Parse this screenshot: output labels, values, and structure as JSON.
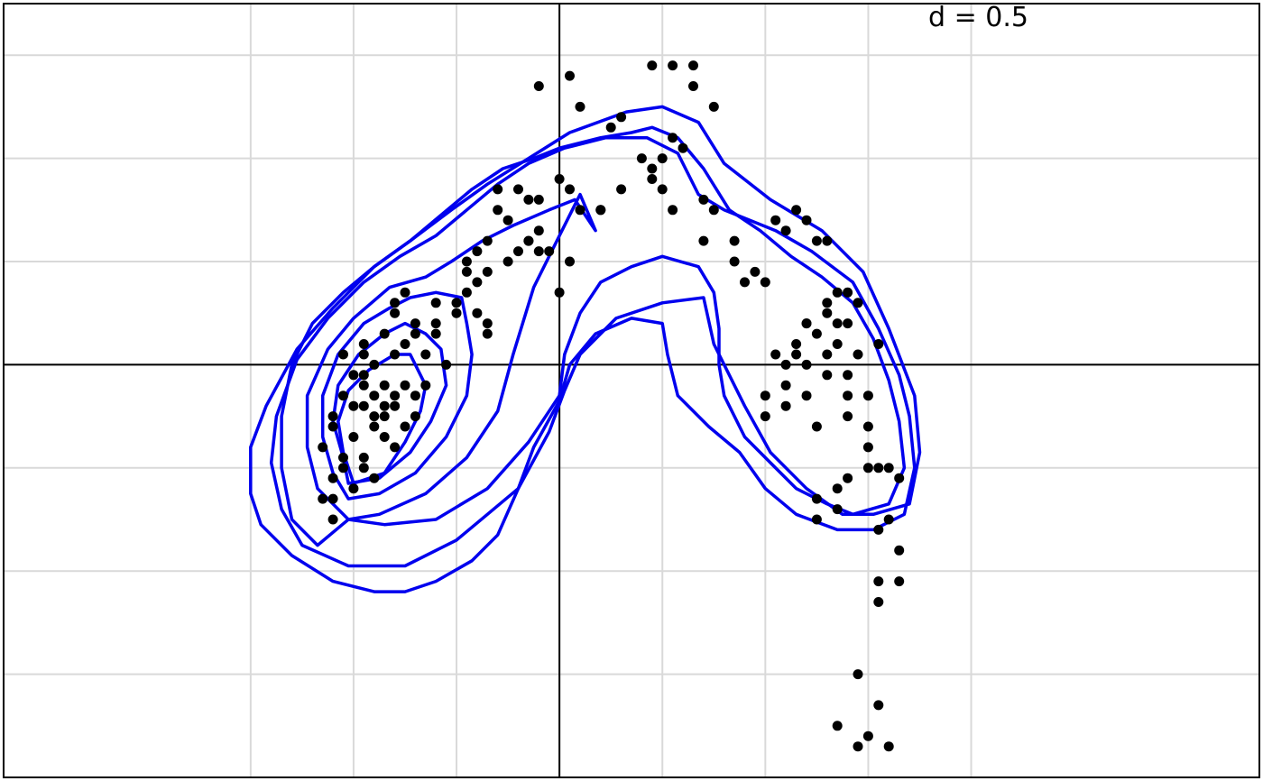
{
  "chart_data": {
    "type": "scatter",
    "title": "",
    "label": "d = 0.5",
    "xlabel": "",
    "ylabel": "",
    "xlim": [
      -5.4,
      6.8
    ],
    "ylim": [
      -4.0,
      3.5
    ],
    "x_grid": [
      -3,
      -2,
      -1,
      0,
      1,
      2,
      3,
      4
    ],
    "y_grid": [
      -3,
      -2,
      -1,
      0,
      1,
      2,
      3
    ],
    "grid": true,
    "reference_axes": {
      "x": 0,
      "y": 0
    },
    "colors": {
      "contour": "#0000ee",
      "points": "#000000",
      "grid": "#d9d9d9"
    },
    "points": [
      [
        -2.0,
        -0.1
      ],
      [
        -1.9,
        -0.2
      ],
      [
        -1.8,
        -0.3
      ],
      [
        -1.9,
        -0.4
      ],
      [
        -2.1,
        -0.3
      ],
      [
        -2.2,
        -0.5
      ],
      [
        -1.7,
        -0.5
      ],
      [
        -1.6,
        -0.4
      ],
      [
        -1.7,
        -0.2
      ],
      [
        -1.8,
        0.0
      ],
      [
        -1.6,
        0.1
      ],
      [
        -1.5,
        -0.2
      ],
      [
        -1.5,
        -0.6
      ],
      [
        -1.7,
        -0.7
      ],
      [
        -2.0,
        -0.7
      ],
      [
        -2.1,
        -0.9
      ],
      [
        -1.9,
        -0.9
      ],
      [
        -1.6,
        -0.8
      ],
      [
        -1.4,
        -0.5
      ],
      [
        -1.3,
        -0.2
      ],
      [
        -1.3,
        0.1
      ],
      [
        -1.2,
        0.3
      ],
      [
        -1.4,
        0.4
      ],
      [
        -1.6,
        0.5
      ],
      [
        -1.2,
        0.4
      ],
      [
        -1.0,
        0.5
      ],
      [
        -0.8,
        0.5
      ],
      [
        -0.7,
        0.4
      ],
      [
        -0.7,
        0.3
      ],
      [
        -1.0,
        0.6
      ],
      [
        -1.2,
        0.6
      ],
      [
        -1.9,
        0.2
      ],
      [
        -2.1,
        0.1
      ],
      [
        -2.3,
        -0.8
      ],
      [
        -2.2,
        -0.6
      ],
      [
        -2.2,
        -1.1
      ],
      [
        -2.3,
        -1.3
      ],
      [
        -2.2,
        -1.5
      ],
      [
        -2.0,
        -1.2
      ],
      [
        -1.8,
        -1.1
      ],
      [
        -1.6,
        0.6
      ],
      [
        -1.5,
        0.7
      ],
      [
        -1.4,
        0.3
      ],
      [
        -1.1,
        0.0
      ],
      [
        -1.6,
        -0.3
      ],
      [
        -1.8,
        -0.6
      ],
      [
        -1.9,
        -0.1
      ],
      [
        -1.9,
        0.1
      ],
      [
        -1.5,
        0.2
      ],
      [
        -1.7,
        0.3
      ],
      [
        -0.8,
        1.1
      ],
      [
        -0.7,
        1.2
      ],
      [
        -0.5,
        1.0
      ],
      [
        -0.4,
        1.1
      ],
      [
        -0.3,
        1.2
      ],
      [
        -0.2,
        1.1
      ],
      [
        -0.1,
        1.1
      ],
      [
        0.1,
        1.0
      ],
      [
        -0.2,
        1.3
      ],
      [
        -0.3,
        1.2
      ],
      [
        0.0,
        0.7
      ],
      [
        -0.7,
        0.9
      ],
      [
        -0.8,
        0.8
      ],
      [
        -0.9,
        0.9
      ],
      [
        -0.9,
        0.7
      ],
      [
        -0.9,
        1.0
      ],
      [
        -0.6,
        1.5
      ],
      [
        -0.5,
        1.4
      ],
      [
        -0.6,
        1.7
      ],
      [
        -0.4,
        1.7
      ],
      [
        -0.3,
        1.6
      ],
      [
        -0.2,
        1.6
      ],
      [
        0.0,
        1.8
      ],
      [
        0.1,
        1.7
      ],
      [
        0.2,
        1.5
      ],
      [
        0.4,
        1.5
      ],
      [
        -0.2,
        2.7
      ],
      [
        0.1,
        2.8
      ],
      [
        0.2,
        2.5
      ],
      [
        0.6,
        2.4
      ],
      [
        1.1,
        2.2
      ],
      [
        1.2,
        2.1
      ],
      [
        1.5,
        2.5
      ],
      [
        1.3,
        2.7
      ],
      [
        0.8,
        2.0
      ],
      [
        0.9,
        1.9
      ],
      [
        0.6,
        1.7
      ],
      [
        0.4,
        1.5
      ],
      [
        0.9,
        1.8
      ],
      [
        1.0,
        2.0
      ],
      [
        0.9,
        2.9
      ],
      [
        1.1,
        2.9
      ],
      [
        1.3,
        2.9
      ],
      [
        0.5,
        2.3
      ],
      [
        1.0,
        1.7
      ],
      [
        1.1,
        1.5
      ],
      [
        1.4,
        1.6
      ],
      [
        1.5,
        1.5
      ],
      [
        1.4,
        1.2
      ],
      [
        1.7,
        1.2
      ],
      [
        1.7,
        1.0
      ],
      [
        1.8,
        0.8
      ],
      [
        1.9,
        0.9
      ],
      [
        2.0,
        0.8
      ],
      [
        2.1,
        1.4
      ],
      [
        2.2,
        1.3
      ],
      [
        2.4,
        1.4
      ],
      [
        2.3,
        1.5
      ],
      [
        2.5,
        1.2
      ],
      [
        2.6,
        1.2
      ],
      [
        2.4,
        0.4
      ],
      [
        2.3,
        0.1
      ],
      [
        2.4,
        0.0
      ],
      [
        2.2,
        -0.2
      ],
      [
        2.0,
        -0.3
      ],
      [
        2.0,
        -0.5
      ],
      [
        2.4,
        -0.3
      ],
      [
        2.6,
        0.1
      ],
      [
        2.2,
        0.0
      ],
      [
        2.4,
        0.4
      ],
      [
        2.6,
        0.6
      ],
      [
        2.7,
        0.7
      ],
      [
        2.8,
        0.7
      ],
      [
        2.9,
        0.6
      ],
      [
        2.8,
        0.4
      ],
      [
        2.5,
        0.3
      ],
      [
        2.6,
        0.5
      ],
      [
        2.7,
        0.4
      ],
      [
        2.7,
        0.2
      ],
      [
        3.1,
        0.2
      ],
      [
        2.9,
        0.1
      ],
      [
        2.8,
        -0.1
      ],
      [
        2.8,
        -0.3
      ],
      [
        2.8,
        -0.5
      ],
      [
        3.0,
        -0.3
      ],
      [
        3.0,
        -0.6
      ],
      [
        3.0,
        -0.8
      ],
      [
        3.0,
        -1.0
      ],
      [
        3.1,
        -1.0
      ],
      [
        3.2,
        -1.0
      ],
      [
        2.8,
        -1.1
      ],
      [
        2.7,
        -1.2
      ],
      [
        2.5,
        -1.3
      ],
      [
        2.5,
        -1.5
      ],
      [
        2.7,
        -1.4
      ],
      [
        3.3,
        -1.1
      ],
      [
        3.2,
        -1.5
      ],
      [
        3.1,
        -1.6
      ],
      [
        3.3,
        -1.8
      ],
      [
        3.1,
        -2.1
      ],
      [
        3.1,
        -2.3
      ],
      [
        3.3,
        -2.1
      ],
      [
        2.9,
        -3.0
      ],
      [
        3.1,
        -3.3
      ],
      [
        2.7,
        -3.5
      ],
      [
        3.0,
        -3.6
      ],
      [
        2.9,
        -3.7
      ],
      [
        3.2,
        -3.7
      ],
      [
        2.2,
        -0.4
      ],
      [
        2.5,
        -0.6
      ],
      [
        2.1,
        0.1
      ],
      [
        2.3,
        0.2
      ],
      [
        2.6,
        -0.1
      ],
      [
        -1.4,
        -0.3
      ],
      [
        -1.8,
        -0.5
      ],
      [
        -2.0,
        -0.4
      ],
      [
        -2.1,
        -1.0
      ],
      [
        -2.2,
        -1.3
      ],
      [
        -1.9,
        -1.0
      ],
      [
        -1.7,
        -0.4
      ]
    ],
    "contours": [
      [
        [
          -2.0,
          -1.15
        ],
        [
          -1.7,
          -1.05
        ],
        [
          -1.5,
          -0.75
        ],
        [
          -1.35,
          -0.45
        ],
        [
          -1.3,
          -0.2
        ],
        [
          -1.45,
          0.1
        ],
        [
          -1.6,
          0.1
        ],
        [
          -1.85,
          -0.05
        ],
        [
          -2.05,
          -0.25
        ],
        [
          -2.15,
          -0.55
        ],
        [
          -2.1,
          -0.85
        ],
        [
          -2.0,
          -1.15
        ]
      ],
      [
        [
          -2.05,
          -1.15
        ],
        [
          -1.75,
          -1.1
        ],
        [
          -1.45,
          -0.85
        ],
        [
          -1.25,
          -0.55
        ],
        [
          -1.1,
          -0.2
        ],
        [
          -1.15,
          0.15
        ],
        [
          -1.3,
          0.3
        ],
        [
          -1.5,
          0.4
        ],
        [
          -1.7,
          0.3
        ],
        [
          -1.95,
          0.1
        ],
        [
          -2.15,
          -0.2
        ],
        [
          -2.2,
          -0.55
        ],
        [
          -2.1,
          -0.9
        ],
        [
          -2.05,
          -1.15
        ]
      ],
      [
        [
          -2.05,
          -1.3
        ],
        [
          -1.75,
          -1.25
        ],
        [
          -1.4,
          -1.05
        ],
        [
          -1.1,
          -0.7
        ],
        [
          -0.9,
          -0.3
        ],
        [
          -0.85,
          0.1
        ],
        [
          -0.9,
          0.4
        ],
        [
          -0.95,
          0.65
        ],
        [
          -1.2,
          0.7
        ],
        [
          -1.45,
          0.65
        ],
        [
          -1.65,
          0.55
        ],
        [
          -1.9,
          0.4
        ],
        [
          -2.15,
          0.1
        ],
        [
          -2.3,
          -0.3
        ],
        [
          -2.3,
          -0.7
        ],
        [
          -2.2,
          -1.05
        ],
        [
          -2.05,
          -1.3
        ]
      ],
      [
        [
          -2.05,
          -1.5
        ],
        [
          -1.75,
          -1.45
        ],
        [
          -1.3,
          -1.25
        ],
        [
          -0.9,
          -0.9
        ],
        [
          -0.6,
          -0.45
        ],
        [
          -0.45,
          0.1
        ],
        [
          -0.25,
          0.75
        ],
        [
          0.0,
          1.25
        ],
        [
          0.2,
          1.65
        ],
        [
          0.35,
          1.3
        ],
        [
          0.15,
          1.6
        ],
        [
          -0.1,
          1.5
        ],
        [
          -0.45,
          1.35
        ],
        [
          -0.75,
          1.2
        ],
        [
          -1.05,
          1.0
        ],
        [
          -1.3,
          0.85
        ],
        [
          -1.65,
          0.75
        ],
        [
          -2.0,
          0.45
        ],
        [
          -2.25,
          0.15
        ],
        [
          -2.45,
          -0.3
        ],
        [
          -2.45,
          -0.8
        ],
        [
          -2.35,
          -1.2
        ],
        [
          -2.05,
          -1.5
        ]
      ],
      [
        [
          -2.05,
          -1.5
        ],
        [
          -1.7,
          -1.55
        ],
        [
          -1.2,
          -1.5
        ],
        [
          -0.7,
          -1.2
        ],
        [
          -0.3,
          -0.75
        ],
        [
          0.0,
          -0.3
        ],
        [
          0.05,
          0.1
        ],
        [
          0.2,
          0.5
        ],
        [
          0.4,
          0.8
        ],
        [
          0.7,
          0.95
        ],
        [
          1.0,
          1.05
        ],
        [
          1.35,
          0.95
        ],
        [
          1.5,
          0.7
        ],
        [
          1.55,
          0.35
        ],
        [
          1.55,
          0.0
        ],
        [
          1.6,
          -0.3
        ],
        [
          1.8,
          -0.7
        ],
        [
          2.05,
          -0.95
        ],
        [
          2.3,
          -1.2
        ],
        [
          2.6,
          -1.35
        ],
        [
          2.85,
          -1.45
        ],
        [
          3.2,
          -1.35
        ],
        [
          3.35,
          -1.0
        ],
        [
          3.3,
          -0.55
        ],
        [
          3.2,
          -0.15
        ],
        [
          3.05,
          0.25
        ],
        [
          2.85,
          0.6
        ],
        [
          2.55,
          0.85
        ],
        [
          2.25,
          1.05
        ],
        [
          1.95,
          1.3
        ],
        [
          1.65,
          1.5
        ],
        [
          1.4,
          1.9
        ],
        [
          1.15,
          2.2
        ],
        [
          0.9,
          2.3
        ],
        [
          0.7,
          2.25
        ],
        [
          0.4,
          2.2
        ],
        [
          0.0,
          2.1
        ],
        [
          -0.25,
          2.0
        ],
        [
          -0.55,
          1.9
        ],
        [
          -0.85,
          1.7
        ],
        [
          -1.15,
          1.45
        ],
        [
          -1.45,
          1.2
        ],
        [
          -1.8,
          0.95
        ],
        [
          -2.1,
          0.7
        ],
        [
          -2.4,
          0.4
        ],
        [
          -2.6,
          0.0
        ],
        [
          -2.7,
          -0.5
        ],
        [
          -2.7,
          -1.0
        ],
        [
          -2.6,
          -1.5
        ],
        [
          -2.35,
          -1.75
        ],
        [
          -2.05,
          -1.5
        ]
      ],
      [
        [
          -2.05,
          -1.95
        ],
        [
          -1.5,
          -1.95
        ],
        [
          -1.0,
          -1.7
        ],
        [
          -0.7,
          -1.45
        ],
        [
          -0.4,
          -1.2
        ],
        [
          -0.25,
          -0.8
        ],
        [
          0.0,
          -0.35
        ],
        [
          0.1,
          0.0
        ],
        [
          0.35,
          0.3
        ],
        [
          0.7,
          0.45
        ],
        [
          1.0,
          0.4
        ],
        [
          1.05,
          0.1
        ],
        [
          1.15,
          -0.3
        ],
        [
          1.45,
          -0.6
        ],
        [
          1.75,
          -0.85
        ],
        [
          2.0,
          -1.2
        ],
        [
          2.3,
          -1.45
        ],
        [
          2.7,
          -1.6
        ],
        [
          3.05,
          -1.6
        ],
        [
          3.35,
          -1.45
        ],
        [
          3.45,
          -1.0
        ],
        [
          3.4,
          -0.5
        ],
        [
          3.3,
          -0.1
        ],
        [
          3.1,
          0.35
        ],
        [
          2.85,
          0.8
        ],
        [
          2.45,
          1.1
        ],
        [
          2.1,
          1.3
        ],
        [
          1.6,
          1.5
        ],
        [
          1.35,
          1.65
        ],
        [
          1.15,
          2.05
        ],
        [
          0.85,
          2.2
        ],
        [
          0.45,
          2.2
        ],
        [
          0.05,
          2.1
        ],
        [
          -0.3,
          1.95
        ],
        [
          -0.6,
          1.75
        ],
        [
          -0.9,
          1.5
        ],
        [
          -1.2,
          1.25
        ],
        [
          -1.55,
          1.05
        ],
        [
          -1.9,
          0.8
        ],
        [
          -2.25,
          0.45
        ],
        [
          -2.55,
          0.05
        ],
        [
          -2.75,
          -0.5
        ],
        [
          -2.8,
          -0.95
        ],
        [
          -2.7,
          -1.4
        ],
        [
          -2.5,
          -1.75
        ],
        [
          -2.05,
          -1.95
        ]
      ],
      [
        [
          -1.8,
          -2.2
        ],
        [
          -1.5,
          -2.2
        ],
        [
          -1.2,
          -2.1
        ],
        [
          -0.85,
          -1.9
        ],
        [
          -0.6,
          -1.65
        ],
        [
          -0.4,
          -1.2
        ],
        [
          -0.1,
          -0.65
        ],
        [
          0.05,
          -0.25
        ],
        [
          0.2,
          0.1
        ],
        [
          0.55,
          0.45
        ],
        [
          1.0,
          0.6
        ],
        [
          1.4,
          0.65
        ],
        [
          1.5,
          0.2
        ],
        [
          1.8,
          -0.4
        ],
        [
          2.05,
          -0.85
        ],
        [
          2.4,
          -1.2
        ],
        [
          2.75,
          -1.45
        ],
        [
          3.05,
          -1.45
        ],
        [
          3.4,
          -1.35
        ],
        [
          3.5,
          -0.85
        ],
        [
          3.45,
          -0.3
        ],
        [
          3.2,
          0.35
        ],
        [
          2.95,
          0.9
        ],
        [
          2.55,
          1.3
        ],
        [
          2.05,
          1.6
        ],
        [
          1.6,
          1.95
        ],
        [
          1.35,
          2.35
        ],
        [
          1.0,
          2.5
        ],
        [
          0.65,
          2.45
        ],
        [
          0.1,
          2.25
        ],
        [
          -0.3,
          2.0
        ],
        [
          -0.7,
          1.75
        ],
        [
          -1.05,
          1.5
        ],
        [
          -1.45,
          1.2
        ],
        [
          -1.8,
          0.95
        ],
        [
          -2.2,
          0.55
        ],
        [
          -2.55,
          0.15
        ],
        [
          -2.85,
          -0.4
        ],
        [
          -3.0,
          -0.8
        ],
        [
          -3.0,
          -1.25
        ],
        [
          -2.9,
          -1.55
        ],
        [
          -2.6,
          -1.85
        ],
        [
          -2.2,
          -2.1
        ],
        [
          -1.8,
          -2.2
        ]
      ]
    ]
  }
}
